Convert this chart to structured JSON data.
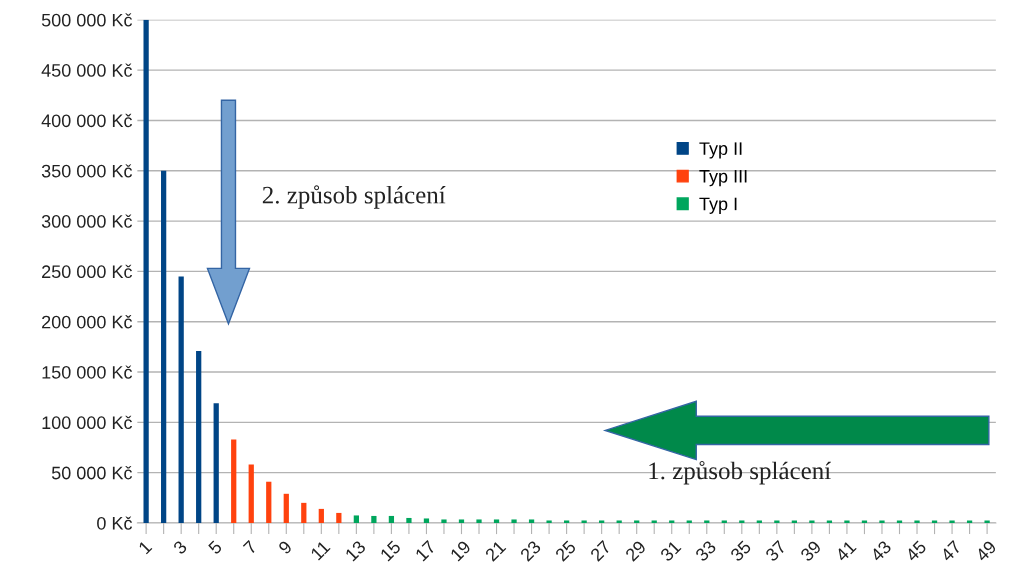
{
  "chart_data": {
    "type": "bar",
    "categories": [
      "1",
      null,
      "3",
      null,
      "5",
      null,
      "7",
      null,
      "9",
      null,
      "11",
      null,
      "13",
      null,
      "15",
      null,
      "17",
      null,
      "19",
      null,
      "21",
      null,
      "23",
      null,
      "25",
      null,
      "27",
      null,
      "29",
      null,
      "31",
      null,
      "33",
      null,
      "35",
      null,
      "37",
      null,
      "39",
      null,
      "41",
      null,
      "43",
      null,
      "45",
      null,
      "47",
      null,
      "49"
    ],
    "series": [
      {
        "name": "Typ II",
        "color": "#004586",
        "values": [
          500000,
          350000,
          245000,
          171000,
          119000,
          null,
          null,
          null,
          null,
          null,
          null,
          null,
          null,
          null,
          null,
          null,
          null,
          null,
          null,
          null,
          null,
          null,
          null,
          null,
          null,
          null,
          null,
          null,
          null,
          null,
          null,
          null,
          null,
          null,
          null,
          null,
          null,
          null,
          null,
          null,
          null,
          null,
          null,
          null,
          null,
          null,
          null,
          null,
          null
        ]
      },
      {
        "name": "Typ III",
        "color": "#ff420e",
        "values": [
          null,
          null,
          null,
          null,
          null,
          83000,
          58000,
          41000,
          29000,
          20000,
          14000,
          10000,
          null,
          null,
          null,
          null,
          null,
          null,
          null,
          null,
          null,
          null,
          null,
          null,
          null,
          null,
          null,
          null,
          null,
          null,
          null,
          null,
          null,
          null,
          null,
          null,
          null,
          null,
          null,
          null,
          null,
          null,
          null,
          null,
          null,
          null,
          null,
          null,
          null
        ]
      },
      {
        "name": "Typ I",
        "color": "#00a65d",
        "values": [
          null,
          null,
          null,
          null,
          null,
          null,
          null,
          null,
          null,
          null,
          null,
          null,
          7500,
          7000,
          7000,
          5000,
          4500,
          3500,
          3500,
          3500,
          3500,
          3500,
          3500,
          2500,
          2500,
          2500,
          2500,
          2500,
          2500,
          2500,
          2500,
          2500,
          2500,
          2500,
          2500,
          2500,
          2500,
          2500,
          2500,
          2500,
          2500,
          2500,
          2500,
          2500,
          2500,
          2500,
          2500,
          2500,
          2500
        ]
      }
    ],
    "ylim": [
      0,
      500000
    ],
    "yticks": [
      {
        "value": 0,
        "label": "0 Kč"
      },
      {
        "value": 50000,
        "label": "50 000 Kč"
      },
      {
        "value": 100000,
        "label": "100 000 Kč"
      },
      {
        "value": 150000,
        "label": "150 000 Kč"
      },
      {
        "value": 200000,
        "label": "200 000 Kč"
      },
      {
        "value": 250000,
        "label": "250 000 Kč"
      },
      {
        "value": 300000,
        "label": "300 000 Kč"
      },
      {
        "value": 350000,
        "label": "350 000 Kč"
      },
      {
        "value": 400000,
        "label": "400 000 Kč"
      },
      {
        "value": 450000,
        "label": "450 000 Kč"
      },
      {
        "value": 500000,
        "label": "500 000 Kč"
      }
    ],
    "grid": "y",
    "legend": "top right",
    "annotations": [
      "2. způsob splácení",
      "1. způsob splácení"
    ]
  }
}
